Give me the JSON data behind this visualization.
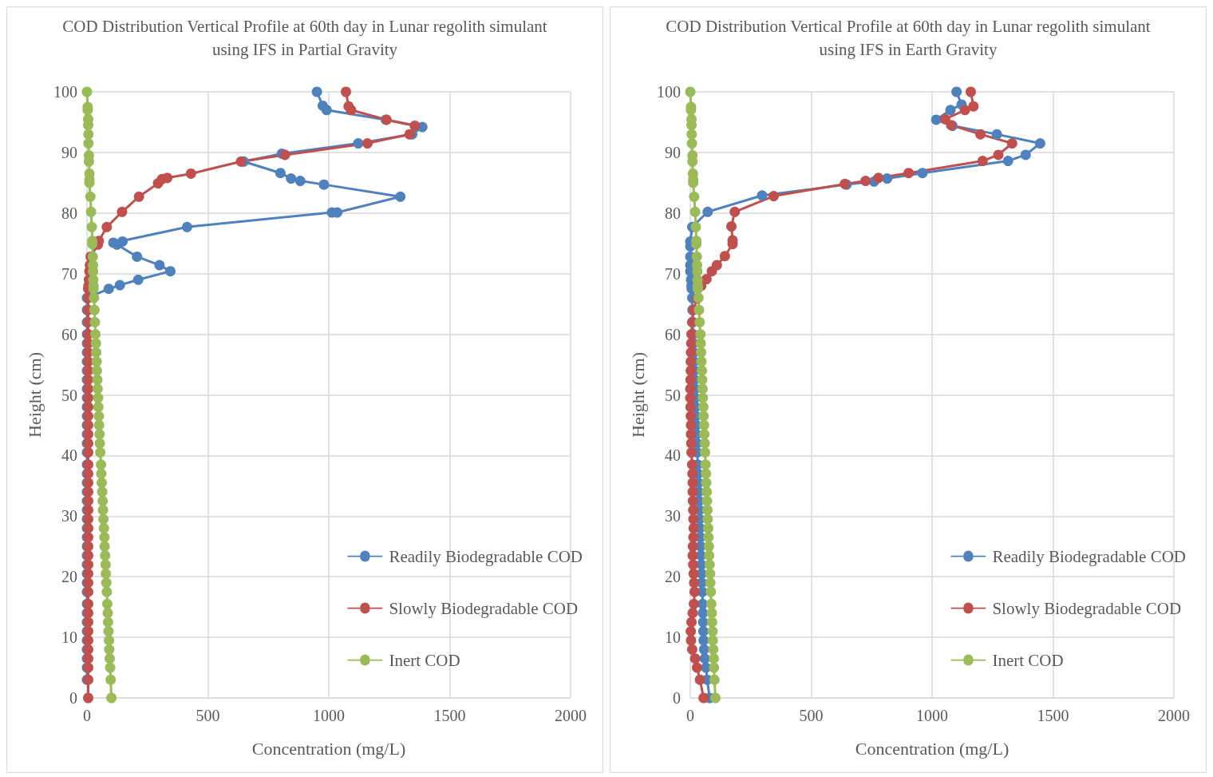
{
  "chart_data": [
    {
      "type": "line",
      "title": "COD Distribution Vertical Profile at 60th day in Lunar regolith simulant using IFS in Partial Gravity",
      "xlabel": "Concentration (mg/L)",
      "ylabel": "Height (cm)",
      "xlim": [
        0,
        2000
      ],
      "xticks": [
        0,
        500,
        1000,
        1500,
        2000
      ],
      "ylim": [
        0,
        100
      ],
      "yticks": [
        0,
        10,
        20,
        30,
        40,
        50,
        60,
        70,
        80,
        90,
        100
      ],
      "grid": true,
      "legend": "bottom right",
      "marker": "circle",
      "line_style": "solid",
      "series": [
        {
          "name": "Readily Biodegradable COD",
          "color": "#4f81bd",
          "x": [
            951,
            975,
            991,
            1236,
            1387,
            1345,
            1122,
            806,
            648,
            800,
            844,
            882,
            980,
            1296,
            1035,
            1013,
            414,
            109,
            147,
            124,
            207,
            300,
            345,
            212,
            136,
            90,
            0,
            0,
            0,
            0,
            0,
            0,
            0,
            0,
            0,
            0,
            0,
            0,
            0,
            0,
            0,
            0,
            0,
            0,
            0,
            0,
            0,
            0,
            0,
            0,
            0,
            0,
            0,
            0,
            0,
            0,
            0,
            0,
            0,
            0,
            0,
            0,
            0,
            0,
            0,
            0,
            0
          ],
          "values": [
            100,
            97.7,
            97,
            95.4,
            94.2,
            93,
            91.5,
            89.8,
            88.5,
            86.6,
            85.7,
            85.3,
            84.7,
            82.7,
            80.1,
            80.1,
            77.7,
            75.1,
            75.3,
            74.8,
            72.8,
            71.4,
            70.4,
            69,
            68.1,
            67.5,
            66,
            64,
            62,
            60,
            58.5,
            57,
            55.5,
            54,
            52.5,
            51,
            49.5,
            48,
            46.5,
            45,
            43.5,
            42,
            40.5,
            38.5,
            37,
            35.5,
            34,
            32.5,
            31,
            29.5,
            28,
            26.5,
            25,
            23.5,
            22,
            20.5,
            19,
            17.5,
            15.5,
            14,
            12.5,
            11,
            9.5,
            8,
            6.5,
            5,
            3
          ]
        },
        {
          "name": "Slowly Biodegradable COD",
          "color": "#c0504d",
          "x": [
            1071,
            1082,
            1092,
            1239,
            1356,
            1334,
            1160,
            819,
            637,
            430,
            332,
            310,
            294,
            215,
            145,
            82,
            49,
            45,
            15,
            12,
            10,
            8,
            6,
            5,
            5,
            5,
            5,
            5,
            5,
            5,
            5,
            5,
            5,
            5,
            5,
            5,
            5,
            5,
            5,
            5,
            5,
            5,
            5,
            5,
            5,
            5,
            5,
            5,
            5,
            5,
            5,
            5,
            5,
            5,
            5,
            5,
            5,
            5,
            5,
            5,
            5,
            5,
            5,
            5,
            5,
            5
          ],
          "values": [
            100,
            97.6,
            97,
            95.4,
            94.4,
            93,
            91.5,
            89.6,
            88.5,
            86.5,
            85.8,
            85.6,
            84.9,
            82.7,
            80.2,
            77.7,
            75.4,
            74.8,
            72.8,
            71.4,
            70.4,
            69,
            68,
            67.5,
            66,
            64,
            62,
            60,
            58.5,
            57,
            55.5,
            54,
            52.5,
            51,
            49.5,
            48,
            46.5,
            45,
            43.5,
            42,
            40.5,
            38.5,
            37,
            35.5,
            34,
            32.5,
            31,
            29.5,
            28,
            26.5,
            25,
            23.5,
            22,
            20.5,
            19,
            17.5,
            15.5,
            14,
            12.5,
            11,
            9.5,
            8,
            6.5,
            5,
            3,
            0
          ]
        },
        {
          "name": "Inert COD",
          "color": "#9bbb59",
          "x": [
            0,
            3,
            3,
            5,
            5,
            6,
            6,
            8,
            8,
            10,
            10,
            10,
            14,
            17,
            20,
            22,
            22,
            24,
            25,
            25,
            26,
            27,
            27,
            29,
            31,
            33,
            35,
            37,
            38,
            40,
            41,
            43,
            44,
            46,
            47,
            49,
            50,
            52,
            53,
            55,
            58,
            59,
            61,
            63,
            65,
            66,
            68,
            70,
            72,
            73,
            75,
            77,
            78,
            80,
            82,
            84,
            86,
            87,
            89,
            91,
            92,
            94,
            96,
            98,
            101
          ],
          "values": [
            100,
            97.5,
            97,
            95.5,
            94.5,
            93,
            91.5,
            89.5,
            88.5,
            86.5,
            85.5,
            85,
            82.7,
            80.2,
            77.7,
            75.4,
            74.9,
            72.8,
            71.4,
            70.4,
            69,
            68,
            67.5,
            66,
            64,
            62,
            60,
            58.5,
            57,
            55.5,
            54,
            52.5,
            51,
            49.5,
            48,
            46.5,
            45,
            43.5,
            42,
            40.5,
            38.5,
            37,
            35.5,
            34,
            32.5,
            31,
            29.5,
            28,
            26.5,
            25,
            23.5,
            22,
            20.5,
            19,
            17.5,
            15.5,
            14,
            12.5,
            11,
            9.5,
            8,
            6.5,
            5,
            3,
            0
          ]
        }
      ]
    },
    {
      "type": "line",
      "title": "COD Distribution Vertical Profile at 60th day in Lunar regolith simulant using IFS in Earth Gravity",
      "xlabel": "Concentration (mg/L)",
      "ylabel": "Height (cm)",
      "xlim": [
        0,
        2000
      ],
      "xticks": [
        0,
        500,
        1000,
        1500,
        2000
      ],
      "ylim": [
        0,
        100
      ],
      "yticks": [
        0,
        10,
        20,
        30,
        40,
        50,
        60,
        70,
        80,
        90,
        100
      ],
      "grid": true,
      "legend": "bottom right",
      "marker": "circle",
      "line_style": "solid",
      "series": [
        {
          "name": "Readily Biodegradable COD",
          "color": "#4f81bd",
          "x": [
            1101,
            1122,
            1076,
            1017,
            1084,
            1268,
            1447,
            1387,
            1314,
            960,
            814,
            760,
            646,
            297,
            72,
            8,
            0,
            0,
            0,
            0,
            0,
            3,
            5,
            6,
            8,
            9,
            10,
            12,
            13,
            15,
            16,
            17,
            18,
            20,
            21,
            22,
            24,
            25,
            26,
            28,
            29,
            31,
            32,
            34,
            35,
            36,
            38,
            39,
            40,
            42,
            43,
            44,
            46,
            47,
            48,
            50,
            51,
            52,
            53,
            54,
            55,
            57,
            60,
            65,
            70,
            80
          ],
          "values": [
            100,
            97.9,
            97,
            95.4,
            94.4,
            93,
            91.5,
            89.6,
            88.6,
            86.6,
            85.7,
            85.2,
            84.7,
            82.9,
            80.2,
            77.7,
            75.3,
            74.5,
            72.8,
            71.4,
            70.4,
            69,
            68,
            67.5,
            66,
            64,
            62,
            60,
            58.5,
            57,
            55.5,
            54,
            52.5,
            51,
            49.5,
            48,
            46.5,
            45,
            43.5,
            42,
            40.5,
            38.5,
            37,
            35.5,
            34,
            32.5,
            31,
            29.5,
            28,
            26.5,
            25,
            23.5,
            22,
            20.5,
            19,
            17.5,
            15.5,
            14,
            12.5,
            11,
            9.5,
            8,
            6.5,
            5,
            3,
            0
          ]
        },
        {
          "name": "Slowly Biodegradable COD",
          "color": "#c0504d",
          "x": [
            1160,
            1171,
            1136,
            1054,
            1079,
            1200,
            1331,
            1274,
            1209,
            903,
            778,
            725,
            639,
            345,
            184,
            170,
            175,
            175,
            143,
            110,
            89,
            67,
            45,
            29,
            13,
            8,
            5,
            4,
            3,
            2,
            2,
            1,
            0,
            0,
            1,
            2,
            3,
            3,
            4,
            5,
            8,
            9,
            10,
            10,
            11,
            12,
            13,
            14,
            13,
            11,
            10,
            12,
            14,
            16,
            18,
            15,
            10,
            5,
            2,
            3,
            8,
            20,
            28,
            40,
            55
          ],
          "values": [
            100,
            97.6,
            97,
            95.5,
            94.5,
            93,
            91.5,
            89.6,
            88.6,
            86.6,
            85.8,
            85.3,
            84.8,
            82.8,
            80.2,
            77.8,
            75.5,
            74.9,
            72.9,
            71.4,
            70.4,
            69.1,
            68,
            65.9,
            64,
            62,
            60,
            58.5,
            57,
            55.5,
            54,
            52.5,
            51,
            49.5,
            48,
            46.5,
            45,
            43.5,
            42,
            40.5,
            38.5,
            37,
            35.5,
            34,
            32.5,
            31,
            29.5,
            28,
            26.5,
            25,
            23.5,
            22,
            20.5,
            19,
            17.5,
            15.5,
            14,
            12.5,
            11,
            9.5,
            8,
            6.5,
            5,
            3,
            0
          ]
        },
        {
          "name": "Inert COD",
          "color": "#9bbb59",
          "x": [
            0,
            3,
            3,
            5,
            5,
            6,
            7,
            9,
            9,
            11,
            12,
            12,
            16,
            20,
            23,
            25,
            25,
            27,
            28,
            29,
            30,
            31,
            31,
            34,
            36,
            39,
            42,
            43,
            45,
            46,
            48,
            49,
            51,
            52,
            54,
            55,
            57,
            58,
            60,
            61,
            63,
            65,
            66,
            68,
            69,
            71,
            72,
            74,
            75,
            77,
            78,
            80,
            82,
            83,
            85,
            87,
            89,
            90,
            92,
            93,
            95,
            97,
            98,
            100,
            104
          ],
          "values": [
            100,
            97.5,
            97,
            95.5,
            94.5,
            93,
            91.5,
            89.5,
            88.5,
            86.5,
            85.5,
            85,
            82.7,
            80.2,
            77.7,
            75.4,
            74.9,
            72.8,
            71.4,
            70.4,
            69,
            68,
            67.5,
            66,
            64,
            62,
            60,
            58.5,
            57,
            55.5,
            54,
            52.5,
            51,
            49.5,
            48,
            46.5,
            45,
            43.5,
            42,
            40.5,
            38.5,
            37,
            35.5,
            34,
            32.5,
            31,
            29.5,
            28,
            26.5,
            25,
            23.5,
            22,
            20.5,
            19,
            17.5,
            15.5,
            14,
            12.5,
            11,
            9.5,
            8,
            6.5,
            5,
            3,
            0
          ]
        }
      ]
    }
  ]
}
